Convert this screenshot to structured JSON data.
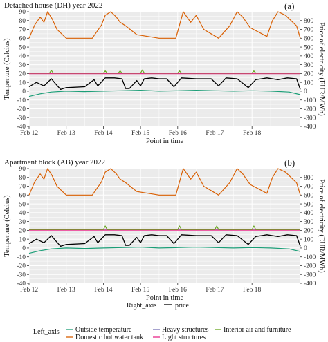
{
  "colors": {
    "outside": "#1b9e77",
    "dhw": "#d95f02",
    "heavy": "#7570b3",
    "light": "#e7298a",
    "interior": "#66a61e",
    "price": "#000000",
    "panel_bg": "#ebebeb",
    "grid": "#ffffff"
  },
  "chart_data": [
    {
      "type": "line",
      "title": "Detached house (DH)  year 2022",
      "tag": "(a)",
      "xlabel": "Point in time",
      "ylabel_left": "Temperture (Celcius)",
      "ylabel_right": "Price of electricity (EUR/MWh)",
      "ylim_left": [
        -40,
        90
      ],
      "ylim_right": [
        -400,
        900
      ],
      "yticks_left": [
        -40,
        -30,
        -20,
        -10,
        0,
        10,
        20,
        30,
        40,
        50,
        60,
        70,
        80,
        90
      ],
      "yticks_right": [
        -400,
        -300,
        -200,
        -100,
        0,
        100,
        200,
        300,
        400,
        500,
        600,
        700,
        800
      ],
      "x_categories": [
        "Feb 12",
        "Feb 13",
        "Feb 14",
        "Feb 15",
        "Feb 16",
        "Feb 17",
        "Feb 18"
      ],
      "series": [
        {
          "name": "Domestic hot water tank",
          "axis": "left",
          "key": "dhw",
          "x": [
            0,
            0.15,
            0.3,
            0.4,
            0.5,
            0.62,
            0.75,
            1.0,
            1.7,
            1.95,
            2.05,
            2.2,
            2.35,
            2.45,
            2.6,
            2.9,
            3.5,
            3.95,
            4.15,
            4.35,
            4.5,
            4.7,
            5.1,
            5.4,
            5.6,
            5.75,
            5.95,
            6.4,
            6.55,
            6.7,
            6.9,
            7.2,
            7.3
          ],
          "y": [
            60,
            75,
            84,
            78,
            90,
            82,
            70,
            60,
            60,
            75,
            86,
            90,
            84,
            78,
            74,
            64,
            60,
            60,
            90,
            78,
            86,
            70,
            60,
            74,
            90,
            84,
            72,
            62,
            80,
            90,
            86,
            74,
            60
          ]
        },
        {
          "name": "Heavy structures",
          "axis": "left",
          "key": "heavy",
          "x": [
            0,
            7.3
          ],
          "y": [
            20.5,
            20.5
          ]
        },
        {
          "name": "Light structures",
          "axis": "left",
          "key": "light",
          "x": [
            0,
            7.3
          ],
          "y": [
            19.8,
            19.8
          ]
        },
        {
          "name": "Interior air and furniture",
          "axis": "left",
          "key": "interior",
          "x": [
            0,
            0.55,
            0.6,
            0.65,
            2.0,
            2.05,
            2.1,
            2.4,
            2.45,
            2.5,
            3.0,
            3.05,
            3.1,
            4.0,
            4.05,
            4.1,
            6.0,
            6.05,
            6.1,
            7.3
          ],
          "y": [
            20.5,
            20.5,
            23.5,
            20.5,
            20.5,
            23,
            20.5,
            20.5,
            23,
            20.5,
            20.5,
            24,
            20.5,
            20.5,
            23,
            20.5,
            20.5,
            23,
            20.5,
            20.5
          ]
        },
        {
          "name": "Outside temperature",
          "axis": "left",
          "key": "outside",
          "x": [
            0,
            0.3,
            0.6,
            1.0,
            1.5,
            2.0,
            2.5,
            3.0,
            3.5,
            4.0,
            4.5,
            5.0,
            5.5,
            6.0,
            6.5,
            7.0,
            7.3
          ],
          "y": [
            -6,
            -3,
            -1,
            0,
            -0.5,
            0,
            0.5,
            1,
            0,
            0.5,
            1,
            0.5,
            0,
            0.5,
            0,
            -1,
            -4
          ]
        },
        {
          "name": "price",
          "axis": "right",
          "key": "price",
          "x": [
            0,
            0.2,
            0.4,
            0.6,
            0.7,
            0.85,
            1.0,
            1.5,
            1.75,
            1.85,
            2.05,
            2.3,
            2.5,
            2.6,
            2.7,
            2.9,
            3.0,
            3.1,
            3.3,
            3.5,
            3.7,
            3.9,
            4.1,
            4.5,
            4.9,
            5.1,
            5.3,
            5.6,
            5.9,
            6.1,
            6.4,
            6.7,
            6.95,
            7.2,
            7.3
          ],
          "y": [
            50,
            100,
            60,
            140,
            90,
            20,
            40,
            50,
            130,
            60,
            150,
            150,
            140,
            30,
            30,
            120,
            60,
            140,
            150,
            140,
            140,
            50,
            150,
            140,
            140,
            60,
            150,
            140,
            40,
            130,
            150,
            130,
            150,
            140,
            20
          ]
        }
      ]
    },
    {
      "type": "line",
      "title": "Apartment block (AB)  year 2022",
      "tag": "(b)",
      "xlabel": "Point in time",
      "ylabel_left": "Temperture (Celcius)",
      "ylabel_right": "Price of electricity (EUR/MWh)",
      "ylim_left": [
        -40,
        90
      ],
      "ylim_right": [
        -400,
        900
      ],
      "yticks_left": [
        -40,
        -30,
        -20,
        -10,
        0,
        10,
        20,
        30,
        40,
        50,
        60,
        70,
        80,
        90
      ],
      "yticks_right": [
        -400,
        -300,
        -200,
        -100,
        0,
        100,
        200,
        300,
        400,
        500,
        600,
        700,
        800
      ],
      "x_categories": [
        "Feb 12",
        "Feb 13",
        "Feb 14",
        "Feb 15",
        "Feb 16",
        "Feb 17",
        "Feb 18"
      ],
      "series": [
        {
          "name": "Domestic hot water tank",
          "axis": "left",
          "key": "dhw",
          "x": [
            0,
            0.15,
            0.3,
            0.4,
            0.5,
            0.62,
            0.75,
            1.0,
            1.7,
            1.95,
            2.05,
            2.2,
            2.35,
            2.45,
            2.6,
            2.9,
            3.5,
            3.95,
            4.15,
            4.35,
            4.5,
            4.7,
            5.1,
            5.4,
            5.6,
            5.75,
            5.95,
            6.4,
            6.55,
            6.7,
            6.9,
            7.2,
            7.3
          ],
          "y": [
            60,
            75,
            84,
            78,
            90,
            82,
            70,
            60,
            60,
            75,
            86,
            90,
            84,
            78,
            74,
            64,
            60,
            60,
            90,
            78,
            86,
            70,
            60,
            74,
            90,
            84,
            72,
            62,
            80,
            90,
            86,
            74,
            60
          ]
        },
        {
          "name": "Heavy structures",
          "axis": "left",
          "key": "heavy",
          "x": [
            0,
            7.3
          ],
          "y": [
            20.5,
            20.5
          ]
        },
        {
          "name": "Light structures",
          "axis": "left",
          "key": "light",
          "x": [
            0,
            7.3
          ],
          "y": [
            20.2,
            20.2
          ]
        },
        {
          "name": "Interior air and furniture",
          "axis": "left",
          "key": "interior",
          "x": [
            0,
            2.0,
            2.05,
            2.1,
            4.0,
            4.05,
            4.1,
            5.0,
            5.05,
            5.1,
            6.0,
            6.05,
            6.1,
            7.3
          ],
          "y": [
            21,
            21,
            25,
            21,
            21,
            25,
            21,
            21,
            25,
            21,
            21,
            25,
            21,
            21
          ]
        },
        {
          "name": "Outside temperature",
          "axis": "left",
          "key": "outside",
          "x": [
            0,
            0.3,
            0.6,
            1.0,
            1.5,
            2.0,
            2.5,
            3.0,
            3.5,
            4.0,
            4.5,
            5.0,
            5.5,
            6.0,
            6.5,
            7.0,
            7.3
          ],
          "y": [
            -6,
            -3,
            -1,
            0,
            -0.5,
            0,
            0.5,
            1,
            0,
            0.5,
            1,
            0.5,
            0,
            0.5,
            0,
            -1,
            -4
          ]
        },
        {
          "name": "price",
          "axis": "right",
          "key": "price",
          "x": [
            0,
            0.2,
            0.4,
            0.6,
            0.7,
            0.85,
            1.0,
            1.5,
            1.75,
            1.85,
            2.05,
            2.3,
            2.5,
            2.6,
            2.7,
            2.9,
            3.0,
            3.1,
            3.3,
            3.5,
            3.7,
            3.9,
            4.1,
            4.5,
            4.9,
            5.1,
            5.3,
            5.6,
            5.9,
            6.1,
            6.4,
            6.7,
            6.95,
            7.2,
            7.3
          ],
          "y": [
            50,
            100,
            60,
            140,
            90,
            20,
            40,
            50,
            130,
            60,
            150,
            150,
            140,
            30,
            30,
            120,
            60,
            140,
            150,
            140,
            140,
            50,
            150,
            140,
            140,
            60,
            150,
            140,
            40,
            130,
            150,
            130,
            150,
            140,
            20
          ]
        }
      ]
    }
  ],
  "legend": {
    "right_axis_title": "Right_axis",
    "right_items": [
      {
        "label": "price",
        "key": "price"
      }
    ],
    "left_axis_title": "Left_axis",
    "left_items": [
      {
        "label": "Outside temperature",
        "key": "outside"
      },
      {
        "label": "Domestic hot water tank",
        "key": "dhw"
      },
      {
        "label": "Heavy structures",
        "key": "heavy"
      },
      {
        "label": "Light structures",
        "key": "light"
      },
      {
        "label": "Interior air and furniture",
        "key": "interior"
      }
    ]
  }
}
